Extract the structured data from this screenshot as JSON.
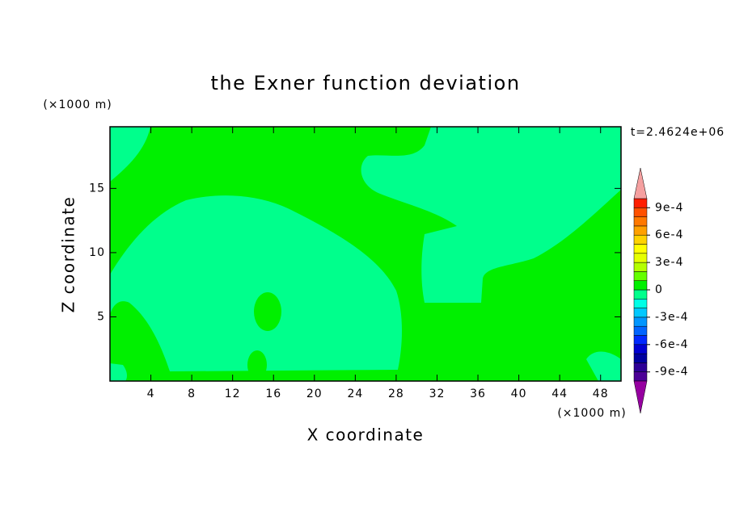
{
  "chart_data": {
    "type": "contour",
    "title": "the Exner function deviation",
    "xlabel": "X coordinate",
    "ylabel": "Z coordinate",
    "x_unit": "(×1000 m)",
    "y_unit": "(×1000 m)",
    "time_label": "t=2.4624e+06",
    "xlim": [
      0,
      50
    ],
    "ylim": [
      0,
      19.8
    ],
    "xticks": [
      4,
      8,
      12,
      16,
      20,
      24,
      28,
      32,
      36,
      40,
      44,
      48
    ],
    "yticks": [
      5,
      10,
      15
    ],
    "colorbar": {
      "levels": [
        -0.001,
        -0.0009,
        -0.0008,
        -0.0007,
        -0.0006,
        -0.0005,
        -0.0004,
        -0.0003,
        -0.0002,
        -0.0001,
        0,
        0.0001,
        0.0002,
        0.0003,
        0.0004,
        0.0005,
        0.0006,
        0.0007,
        0.0008,
        0.0009,
        0.001
      ],
      "colors": [
        "#4b0096",
        "#2d0096",
        "#0000a0",
        "#0000d2",
        "#0028ff",
        "#0064ff",
        "#0096ff",
        "#00c8ff",
        "#00ffe6",
        "#00ff8c",
        "#00f000",
        "#64ff00",
        "#b4ff00",
        "#e6ff00",
        "#ffff00",
        "#ffd200",
        "#ffa000",
        "#ff7800",
        "#ff5000",
        "#ff1e00"
      ],
      "under_color": "#9600a0",
      "over_color": "#f5a0a0",
      "ticks": [
        {
          "value": 0.0009,
          "label": "9e-4"
        },
        {
          "value": 0.0006,
          "label": "6e-4"
        },
        {
          "value": 0.0003,
          "label": "3e-4"
        },
        0,
        {
          "value": -0.0003,
          "label": "-3e-4"
        },
        {
          "value": -0.0006,
          "label": "-6e-4"
        },
        {
          "value": -0.0009,
          "label": "-9e-4"
        }
      ]
    }
  }
}
